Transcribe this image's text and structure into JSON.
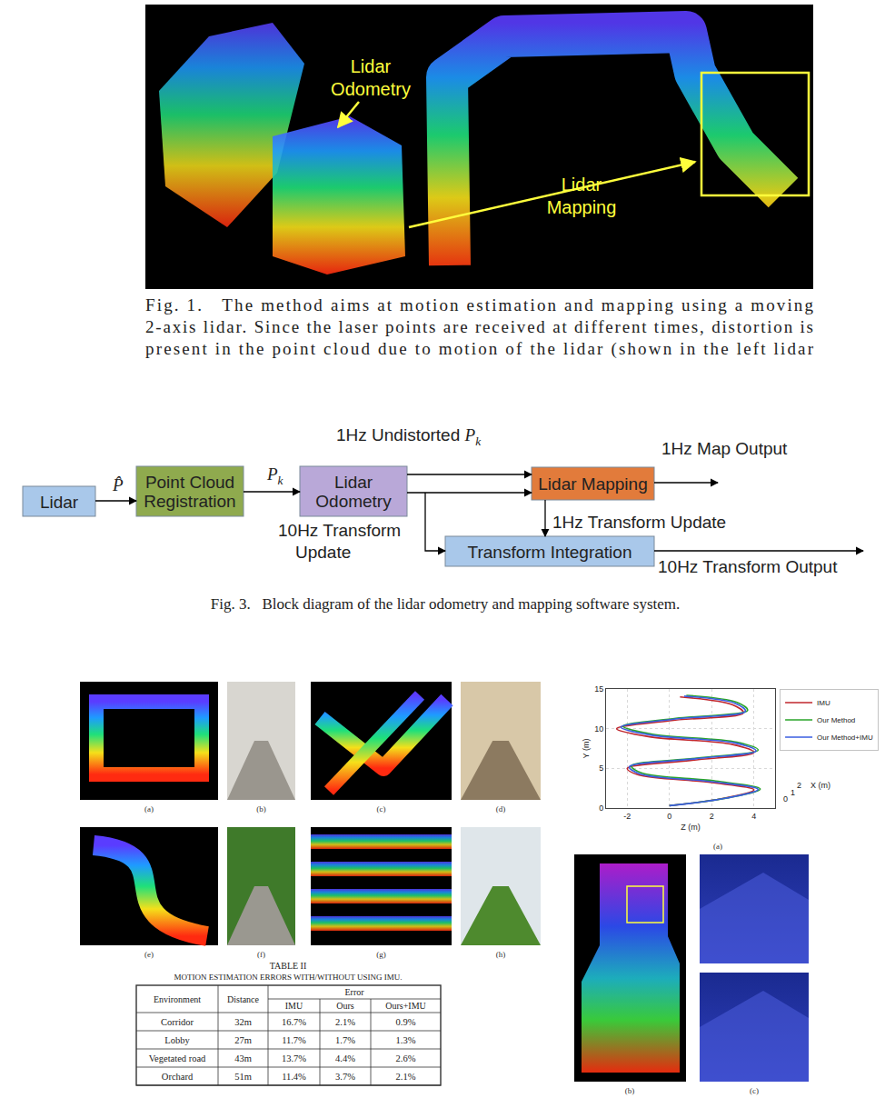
{
  "figure1": {
    "label_odometry": [
      "Lidar",
      "Odometry"
    ],
    "label_mapping": [
      "Lidar",
      "Mapping"
    ],
    "caption_lines": [
      "Fig. 1.   The method aims at motion estimation and mapping using a moving",
      "2-axis lidar. Since the laser points are received at different times, distortion is",
      "present in the point cloud due to motion of the lidar (shown in the left lidar"
    ]
  },
  "figure3": {
    "nodes": [
      {
        "label": [
          "Lidar"
        ]
      },
      {
        "label": [
          "Point Cloud",
          "Registration"
        ]
      },
      {
        "label": [
          "Lidar",
          "Odometry"
        ]
      },
      {
        "label": [
          "Lidar Mapping"
        ]
      },
      {
        "label": [
          "Transform Integration"
        ]
      }
    ],
    "edge_labels": [
      [
        {
          "symbol": "P̂"
        }
      ],
      [
        {
          "symbol": "P",
          "sub": "k"
        }
      ],
      [
        {
          "text": "1Hz Undistorted "
        },
        {
          "symbol": "P",
          "sub": "k"
        }
      ],
      [
        {
          "text": "10Hz Transform"
        }
      ],
      [
        {
          "text": "Update"
        }
      ],
      [
        {
          "text": "1Hz Map Output"
        }
      ],
      [
        {
          "text": "1Hz Transform Update"
        }
      ],
      [
        {
          "text": "10Hz Transform Output"
        }
      ]
    ],
    "caption": "Fig. 3.   Block diagram of the lidar odometry and mapping software system."
  },
  "figure_panels": {
    "labels": [
      "(a)",
      "(b)",
      "(c)",
      "(d)",
      "(e)",
      "(f)",
      "(g)",
      "(h)"
    ]
  },
  "table": {
    "number": "TABLE II",
    "title": "MOTION ESTIMATION ERRORS WITH/WITHOUT USING IMU.",
    "header": [
      "Environment",
      "Distance",
      "Error"
    ],
    "subheader": [
      "IMU",
      "Ours",
      "Ours+IMU"
    ],
    "rows": [
      [
        "Corridor",
        "32m",
        "16.7%",
        "2.1%",
        "0.9%"
      ],
      [
        "Lobby",
        "27m",
        "11.7%",
        "1.7%",
        "1.3%"
      ],
      [
        "Vegetated road",
        "43m",
        "13.7%",
        "4.4%",
        "2.6%"
      ],
      [
        "Orchard",
        "51m",
        "11.4%",
        "3.7%",
        "2.1%"
      ]
    ]
  },
  "chart_data": {
    "type": "line",
    "annotations": [
      "(a)"
    ],
    "xlabel": "Z (m)",
    "ylabel": "Y (m)",
    "zlabel": "X (m)",
    "xlim": [
      -3,
      5
    ],
    "xticks": [
      -2,
      0,
      2,
      4
    ],
    "ylim": [
      0,
      15
    ],
    "yticks": [
      0,
      5,
      10,
      15
    ],
    "zticks": [
      0,
      1,
      2
    ],
    "grid": true,
    "legend": "right",
    "series": [
      {
        "name": "IMU",
        "color": "#c0262d",
        "x": [
          0,
          2.5,
          4,
          2,
          -1.5,
          -2,
          1,
          4,
          3,
          -1,
          -2.5,
          0,
          3.5,
          3,
          0.5
        ],
        "values": [
          0.3,
          1.2,
          2.3,
          3.2,
          4.2,
          5,
          6,
          7,
          8,
          9,
          10,
          11,
          12,
          13,
          14
        ]
      },
      {
        "name": "Our Method",
        "color": "#2aa52a",
        "x": [
          0,
          2.8,
          4.3,
          2.2,
          -1.3,
          -1.8,
          1.3,
          4.2,
          3.2,
          -0.8,
          -2.2,
          0.3,
          3.7,
          3.2,
          0.8
        ],
        "values": [
          0.3,
          1.3,
          2.4,
          3.4,
          4.4,
          5.3,
          6.3,
          7.3,
          8.3,
          9.3,
          10.3,
          11.3,
          12.3,
          13.3,
          14.2
        ]
      },
      {
        "name": "Our Method+IMU",
        "color": "#3a5ee0",
        "x": [
          0,
          2.7,
          4.2,
          2.1,
          -1.4,
          -1.9,
          1.2,
          4.1,
          3.1,
          -0.9,
          -2.3,
          0.2,
          3.6,
          3.1,
          0.7
        ],
        "values": [
          0.3,
          1.25,
          2.35,
          3.3,
          4.3,
          5.2,
          6.2,
          7.2,
          8.2,
          9.2,
          10.2,
          11.2,
          12.2,
          13.2,
          14.1
        ]
      }
    ]
  },
  "figure_maps": {
    "labels": [
      "(b)",
      "(c)"
    ]
  }
}
